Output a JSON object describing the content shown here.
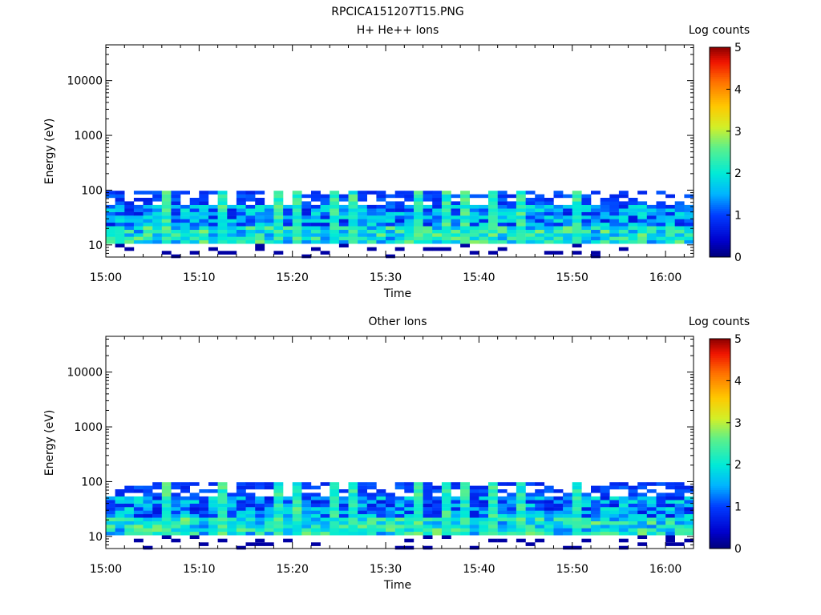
{
  "figure_title": "RPCICA151207T15.PNG",
  "chart_data": [
    {
      "type": "heatmap",
      "title": "H+ He++ Ions",
      "xlabel": "Time",
      "ylabel": "Energy (eV)",
      "y_scale": "log",
      "ylim": [
        6,
        45000
      ],
      "y_ticks": [
        10,
        100,
        1000,
        10000
      ],
      "y_tick_labels": [
        "10",
        "100",
        "1000",
        "10000"
      ],
      "xlim": [
        "15:00",
        "16:03"
      ],
      "x_ticks": [
        "15:00",
        "15:10",
        "15:20",
        "15:30",
        "15:40",
        "15:50",
        "16:00"
      ],
      "time_step_min": 1,
      "energy_rows_eV": [
        6.2,
        7.2,
        8.4,
        9.7,
        11.3,
        13.1,
        15.2,
        17.6,
        20.4,
        23.7,
        27.5,
        31.9,
        37.0,
        42.9,
        49.8,
        57.8,
        67.1,
        77.8,
        90.3
      ],
      "colorbar": {
        "label": "Log counts",
        "min": 0,
        "max": 5,
        "ticks": [
          "0",
          "1",
          "2",
          "3",
          "4",
          "5"
        ],
        "colormap": "rainbow"
      },
      "log_counts": [
        [
          0,
          0,
          0,
          0,
          0,
          0,
          0,
          0,
          0,
          0,
          0,
          0,
          0,
          0,
          0,
          0,
          0,
          0,
          0,
          0,
          0,
          0,
          0,
          0,
          0,
          0,
          0,
          0,
          0,
          0,
          0,
          0,
          0,
          0,
          0,
          0,
          0,
          0,
          0,
          0,
          0,
          0,
          0,
          0,
          0,
          0,
          0,
          0,
          0,
          0,
          0,
          0,
          0,
          0,
          0,
          0,
          0,
          0,
          0,
          0,
          0,
          0,
          0
        ],
        [
          0,
          0,
          0,
          0,
          0,
          0,
          0,
          0,
          0,
          0,
          0,
          0,
          0,
          0,
          0,
          0,
          0,
          0,
          0,
          0,
          0,
          0,
          0,
          0,
          0,
          0,
          0,
          0,
          0,
          0,
          0,
          0,
          0,
          0,
          0,
          0,
          0,
          0,
          0,
          0,
          0,
          0,
          0,
          0,
          0,
          0,
          0,
          0,
          0,
          0,
          0,
          0,
          0,
          0,
          0,
          0,
          0,
          0,
          0,
          0,
          0,
          0,
          0
        ],
        [
          0,
          0,
          0,
          0,
          0,
          0,
          0,
          0,
          0,
          0,
          0,
          0,
          0,
          0,
          0,
          0,
          0,
          0,
          0,
          0,
          0,
          0,
          0,
          0,
          0,
          0,
          0,
          0,
          0,
          0,
          0,
          0,
          0,
          0,
          0,
          0,
          0,
          0,
          0,
          0,
          0,
          0,
          0,
          0,
          0,
          0,
          0,
          0,
          0,
          0,
          0,
          0,
          0,
          0,
          0,
          0,
          0,
          0,
          0,
          0,
          0,
          0,
          0
        ],
        [
          0,
          0,
          0,
          0,
          0,
          0,
          0,
          0,
          0,
          0,
          0,
          0,
          0,
          0,
          0,
          0,
          0,
          0,
          0,
          0,
          0,
          0,
          0,
          0,
          0,
          0,
          0,
          0,
          0,
          0,
          0,
          0,
          0,
          0,
          0,
          0,
          0,
          0,
          0,
          0,
          0,
          0,
          0,
          0,
          0,
          0,
          0,
          0,
          0,
          0,
          0,
          0,
          0,
          0,
          0,
          0,
          0,
          0,
          0,
          0,
          0,
          0,
          0
        ],
        [
          0,
          0,
          0,
          0,
          0,
          0,
          0,
          0,
          0,
          0,
          0,
          0,
          0,
          0,
          0,
          0,
          0,
          0,
          0,
          0,
          0,
          0,
          0,
          0,
          0,
          0,
          0,
          0,
          0,
          0,
          0,
          0,
          0,
          0,
          0,
          0,
          0,
          0,
          0,
          0,
          0,
          0,
          0,
          0,
          0,
          0,
          0,
          0,
          0,
          0,
          0,
          0,
          0,
          0,
          0,
          0,
          0,
          0,
          0,
          0,
          0,
          0,
          0
        ],
        [
          0,
          0,
          0,
          0,
          0,
          0,
          0,
          0,
          0,
          0,
          0,
          0,
          0,
          0,
          0,
          0,
          0,
          0,
          0,
          0,
          0,
          0,
          0,
          0,
          0,
          0,
          0,
          0,
          0,
          0,
          0,
          0,
          0,
          0,
          0,
          0,
          0,
          0,
          0,
          0,
          0,
          0,
          0,
          0,
          0,
          0,
          0,
          0,
          0,
          0,
          0,
          0,
          0,
          0,
          0,
          0,
          0,
          0,
          0,
          0,
          0,
          0,
          0
        ],
        [
          0,
          0,
          0,
          0,
          0,
          0,
          0,
          0,
          0,
          0,
          0,
          0,
          0,
          0,
          0,
          0,
          0,
          0,
          0,
          0,
          0,
          0,
          0,
          0,
          0,
          0,
          0,
          0,
          0,
          0,
          0,
          0,
          0,
          0,
          0,
          0,
          0,
          0,
          0,
          0,
          0,
          0,
          0,
          0,
          0,
          0,
          0,
          0,
          0,
          0,
          0,
          0,
          0,
          0,
          0,
          0,
          0,
          0,
          0,
          0,
          0,
          0,
          0
        ],
        [
          0,
          0,
          0,
          0,
          0,
          0,
          0,
          0,
          0,
          0,
          0,
          0,
          0,
          0,
          0,
          0,
          0,
          0,
          0,
          0,
          0,
          0,
          0,
          0,
          0,
          0,
          0,
          0,
          0,
          0,
          0,
          0,
          0,
          0,
          0,
          0,
          0,
          0,
          0,
          0,
          0,
          0,
          0,
          0,
          0,
          0,
          0,
          0,
          0,
          0,
          0,
          0,
          0,
          0,
          0,
          0,
          0,
          0,
          0,
          0,
          0,
          0,
          0
        ],
        [
          0,
          0,
          0,
          0,
          0,
          0,
          0,
          0,
          0,
          0,
          0,
          0,
          0,
          0,
          0,
          0,
          0,
          0,
          0,
          0,
          0,
          0,
          0,
          0,
          0,
          0,
          0,
          0,
          0,
          0,
          0,
          0,
          0,
          0,
          0,
          0,
          0,
          0,
          0,
          0,
          0,
          0,
          0,
          0,
          0,
          0,
          0,
          0,
          0,
          0,
          0,
          0,
          0,
          0,
          0,
          0,
          0,
          0,
          0,
          0,
          0,
          0,
          0
        ],
        [
          0,
          0,
          0,
          0,
          0,
          0,
          0,
          0,
          0,
          0,
          0,
          0,
          0,
          0,
          0,
          0,
          0,
          0,
          0,
          0,
          0,
          0,
          0,
          0,
          0,
          0,
          0,
          0,
          0,
          0,
          0,
          0,
          0,
          0,
          0,
          0,
          0,
          0,
          0,
          0,
          0,
          0,
          0,
          0,
          0,
          0,
          0,
          0,
          0,
          0,
          0,
          0,
          0,
          0,
          0,
          0,
          0,
          0,
          0,
          0,
          0,
          0,
          0
        ],
        [
          0,
          0,
          0,
          0,
          0,
          0,
          0,
          0,
          0,
          0,
          0,
          0,
          0,
          0,
          0,
          0,
          0,
          0,
          0,
          0,
          0,
          0,
          0,
          0,
          0,
          0,
          0,
          0,
          0,
          0,
          0,
          0,
          0,
          0,
          0,
          0,
          0,
          0,
          0,
          0,
          0,
          0,
          0,
          0,
          0,
          0,
          0,
          0,
          0,
          0,
          0,
          0,
          0,
          0,
          0,
          0,
          0,
          0,
          0,
          0,
          0,
          0,
          0
        ],
        [
          0,
          0,
          0,
          0,
          0,
          0,
          0,
          0,
          0,
          0,
          0,
          0,
          0,
          0,
          0,
          0,
          0,
          0,
          0,
          0,
          0,
          0,
          0,
          0,
          0,
          0,
          0,
          0,
          0,
          0,
          0,
          0,
          0,
          0,
          0,
          0,
          0,
          0,
          0,
          0,
          0,
          0,
          0,
          0,
          0,
          0,
          0,
          0,
          0,
          0,
          0,
          0,
          0,
          0,
          0,
          0,
          0,
          0,
          0,
          0,
          0,
          0,
          0
        ],
        [
          0,
          0,
          0,
          0,
          0,
          0,
          0,
          0,
          0,
          0,
          0,
          0,
          0,
          0,
          0,
          0,
          0,
          0,
          0,
          0,
          0,
          0,
          0,
          0,
          0,
          0,
          0,
          0,
          0,
          0,
          0,
          0,
          0,
          0,
          0,
          0,
          0,
          0,
          0,
          0,
          0,
          0,
          0,
          0,
          0,
          0,
          0,
          0,
          0,
          0,
          0,
          0,
          0,
          0,
          0,
          0,
          0,
          0,
          0,
          0,
          0,
          0,
          0
        ],
        [
          0,
          0,
          0,
          0,
          0,
          0,
          0,
          0,
          0,
          0,
          0,
          0,
          0,
          0,
          0,
          0,
          0,
          0,
          0,
          0,
          0,
          0,
          0,
          0,
          0,
          0,
          0,
          0,
          0,
          0,
          0,
          0,
          0,
          0,
          0,
          0,
          0,
          0,
          0,
          0,
          0,
          0,
          0,
          0,
          0,
          0,
          0,
          0,
          0,
          0,
          0,
          0,
          0,
          0,
          0,
          0,
          0,
          0,
          0,
          0,
          0,
          0,
          0
        ],
        [
          0,
          0,
          0,
          0,
          0,
          0,
          0,
          0,
          0,
          0,
          0,
          0,
          0,
          0,
          0,
          0,
          0,
          0,
          0,
          0,
          0,
          0,
          0,
          0,
          0,
          0,
          0,
          0,
          0,
          0,
          0,
          0,
          0,
          0,
          0,
          0,
          0,
          0,
          0,
          0,
          0,
          0,
          0,
          0,
          0,
          0,
          0,
          0,
          0,
          0,
          0,
          0,
          0,
          0,
          0,
          0,
          0,
          0,
          0,
          0,
          0,
          0,
          0
        ],
        [
          0,
          0,
          0,
          0,
          0,
          0,
          0,
          0,
          0,
          0,
          0,
          0,
          0,
          0,
          0,
          0,
          0,
          0,
          0,
          0,
          0,
          0,
          0,
          0,
          0,
          0,
          0,
          0,
          0,
          0,
          0,
          0,
          0,
          0,
          0,
          0,
          0,
          0,
          0,
          0,
          0,
          0,
          0,
          0,
          0,
          0,
          0,
          0,
          0,
          0,
          0,
          0,
          0,
          0,
          0,
          0,
          0,
          0,
          0,
          0,
          0,
          0,
          0
        ],
        [
          0,
          0,
          0,
          0,
          0,
          0,
          0,
          0,
          0,
          0,
          0,
          0,
          0,
          0,
          0,
          0,
          0,
          0,
          0,
          0,
          0,
          0,
          0,
          0,
          0,
          0,
          0,
          0,
          0,
          0,
          0,
          0,
          0,
          0,
          0,
          0,
          0,
          0,
          0,
          0,
          0,
          0,
          0,
          0,
          0,
          0,
          0,
          0,
          0,
          0,
          0,
          0,
          0,
          0,
          0,
          0,
          0,
          0,
          0,
          0,
          0,
          0,
          0
        ],
        [
          0,
          0,
          0,
          0,
          0,
          0,
          0,
          0,
          0,
          0,
          0,
          0,
          0,
          0,
          0,
          0,
          0,
          0,
          0,
          0,
          0,
          0,
          0,
          0,
          0,
          0,
          0,
          0,
          0,
          0,
          0,
          0,
          0,
          0,
          0,
          0,
          0,
          0,
          0,
          0,
          0,
          0,
          0,
          0,
          0,
          0,
          0,
          0,
          0,
          0,
          0,
          0,
          0,
          0,
          0,
          0,
          0,
          0,
          0,
          0,
          0,
          0,
          0
        ],
        [
          0,
          0,
          0,
          0,
          0,
          0,
          0,
          0,
          0,
          0,
          0,
          0,
          0,
          0,
          0,
          0,
          0,
          0,
          0,
          0,
          0,
          0,
          0,
          0,
          0,
          0,
          0,
          0,
          0,
          0,
          0,
          0,
          0,
          0,
          0,
          0,
          0,
          0,
          0,
          0,
          0,
          0,
          0,
          0,
          0,
          0,
          0,
          0,
          0,
          0,
          0,
          0,
          0,
          0,
          0,
          0,
          0,
          0,
          0,
          0,
          0,
          0,
          0
        ]
      ]
    },
    {
      "type": "heatmap",
      "title": "Other Ions",
      "xlabel": "Time",
      "ylabel": "Energy (eV)",
      "y_scale": "log",
      "ylim": [
        6,
        45000
      ],
      "y_ticks": [
        10,
        100,
        1000,
        10000
      ],
      "y_tick_labels": [
        "10",
        "100",
        "1000",
        "10000"
      ],
      "xlim": [
        "15:00",
        "16:03"
      ],
      "x_ticks": [
        "15:00",
        "15:10",
        "15:20",
        "15:30",
        "15:40",
        "15:50",
        "16:00"
      ],
      "time_step_min": 1,
      "energy_rows_eV": [
        6.2,
        7.2,
        8.4,
        9.7,
        11.3,
        13.1,
        15.2,
        17.6,
        20.4,
        23.7,
        27.5,
        31.9,
        37.0,
        42.9,
        49.8,
        57.8,
        67.1,
        77.8,
        90.3
      ],
      "colorbar": {
        "label": "Log counts",
        "min": 0,
        "max": 5,
        "ticks": [
          "0",
          "1",
          "2",
          "3",
          "4",
          "5"
        ],
        "colormap": "rainbow"
      },
      "log_counts": []
    }
  ]
}
